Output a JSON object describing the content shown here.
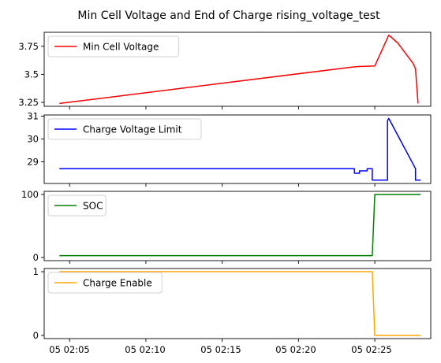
{
  "figure_title": "Min Cell Voltage and End of Charge rising_voltage_test",
  "x_ticks": [
    "05 02:05",
    "05 02:10",
    "05 02:15",
    "05 02:20",
    "05 02:25"
  ],
  "chart_data": [
    {
      "type": "line",
      "series": [
        {
          "name": "Min Cell Voltage",
          "color": "#ff0000",
          "x": [
            "02:04:20",
            "02:23:30",
            "02:24:00",
            "02:24:10",
            "02:25:00",
            "02:25:55",
            "02:26:30",
            "02:27:30",
            "02:27:40",
            "02:27:50"
          ],
          "values": [
            3.24,
            3.565,
            3.57,
            3.57,
            3.575,
            3.85,
            3.78,
            3.6,
            3.55,
            3.24
          ]
        }
      ],
      "ylim": [
        3.215,
        3.875
      ],
      "y_ticks": [
        3.25,
        3.5,
        3.75
      ],
      "legend": "upper-left",
      "grid": false
    },
    {
      "type": "line",
      "series": [
        {
          "name": "Charge Voltage Limit",
          "color": "#0000ff",
          "x": [
            "02:04:20",
            "02:23:40",
            "02:23:40",
            "02:24:00",
            "02:24:00",
            "02:24:30",
            "02:24:30",
            "02:24:50",
            "02:24:50",
            "02:25:50",
            "02:25:50",
            "02:25:55",
            "02:27:40",
            "02:27:40",
            "02:28:00"
          ],
          "values": [
            28.7,
            28.7,
            28.5,
            28.5,
            28.6,
            28.6,
            28.7,
            28.7,
            28.2,
            28.2,
            30.8,
            30.9,
            28.7,
            28.2,
            28.2
          ]
        }
      ],
      "ylim": [
        28.05,
        31.05
      ],
      "y_ticks": [
        29,
        30,
        31
      ],
      "legend": "upper-left",
      "grid": false
    },
    {
      "type": "line",
      "series": [
        {
          "name": "SOC",
          "color": "#008000",
          "x": [
            "02:04:20",
            "02:24:50",
            "02:25:00",
            "02:28:00"
          ],
          "values": [
            3,
            3,
            100,
            100
          ]
        }
      ],
      "ylim": [
        -5,
        105
      ],
      "y_ticks": [
        0,
        100
      ],
      "legend": "upper-left",
      "grid": false
    },
    {
      "type": "line",
      "series": [
        {
          "name": "Charge Enable",
          "color": "#ffa500",
          "x": [
            "02:04:20",
            "02:24:50",
            "02:25:00",
            "02:28:00"
          ],
          "values": [
            1,
            1,
            0,
            0
          ]
        }
      ],
      "ylim": [
        -0.05,
        1.05
      ],
      "y_ticks": [
        0,
        1
      ],
      "legend": "upper-left",
      "grid": false
    }
  ],
  "x_range": [
    "02:03:20",
    "02:28:40"
  ]
}
